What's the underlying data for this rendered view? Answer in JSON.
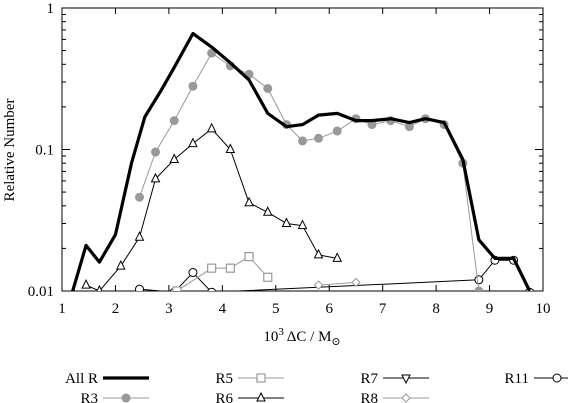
{
  "chart_data": {
    "type": "line",
    "title": "",
    "xlabel": "10³ ΔC / M⊙",
    "ylabel": "Relative Number",
    "xlim": [
      1,
      10
    ],
    "ylim": [
      0.01,
      1
    ],
    "yscale": "log",
    "grid": false,
    "legend_position": "bottom",
    "x_ticks": [
      "1",
      "2",
      "3",
      "4",
      "5",
      "6",
      "7",
      "8",
      "9",
      "10"
    ],
    "y_ticks": [
      "0.01",
      "0.1",
      "1"
    ],
    "series": [
      {
        "name": "All R",
        "color": "#000000",
        "marker": "none",
        "x": [
          1.2,
          1.45,
          1.7,
          2.0,
          2.3,
          2.55,
          2.85,
          3.1,
          3.45,
          3.8,
          4.15,
          4.5,
          4.85,
          5.2,
          5.5,
          5.8,
          6.15,
          6.5,
          6.8,
          7.15,
          7.5,
          7.8,
          8.15,
          8.5,
          8.8,
          9.1,
          9.45,
          9.75
        ],
        "y": [
          0.01,
          0.021,
          0.016,
          0.025,
          0.08,
          0.17,
          0.26,
          0.38,
          0.66,
          0.53,
          0.41,
          0.31,
          0.18,
          0.145,
          0.15,
          0.175,
          0.18,
          0.16,
          0.16,
          0.165,
          0.155,
          0.165,
          0.155,
          0.085,
          0.023,
          0.017,
          0.017,
          0.01
        ]
      },
      {
        "name": "R3",
        "color": "#999999",
        "marker": "circle",
        "marker_fill": "#999999",
        "x": [
          2.45,
          2.75,
          3.1,
          3.45,
          3.8,
          4.15,
          4.5,
          4.85,
          5.2,
          5.5,
          5.8,
          6.15,
          6.5,
          6.8,
          7.15,
          7.5,
          7.8,
          8.15,
          8.5,
          8.8
        ],
        "y": [
          0.046,
          0.096,
          0.16,
          0.28,
          0.48,
          0.39,
          0.34,
          0.27,
          0.15,
          0.115,
          0.12,
          0.135,
          0.165,
          0.15,
          0.16,
          0.145,
          0.165,
          0.15,
          0.08,
          0.01
        ]
      },
      {
        "name": "R5",
        "color": "#999999",
        "marker": "square",
        "marker_fill": "#ffffff",
        "x": [
          3.15,
          3.8,
          4.15,
          4.5,
          4.85
        ],
        "y": [
          0.01,
          0.0145,
          0.0145,
          0.0175,
          0.0125
        ]
      },
      {
        "name": "R6",
        "color": "#000000",
        "marker": "triangle-up",
        "marker_fill": "#ffffff",
        "x": [
          1.45,
          1.7,
          2.1,
          2.45,
          2.75,
          3.1,
          3.45,
          3.8,
          4.15,
          4.5,
          4.85,
          5.2,
          5.5,
          5.8,
          6.15
        ],
        "y": [
          0.011,
          0.01,
          0.015,
          0.024,
          0.062,
          0.085,
          0.11,
          0.14,
          0.1,
          0.042,
          0.036,
          0.03,
          0.029,
          0.018,
          0.017
        ]
      },
      {
        "name": "R7",
        "color": "#000000",
        "marker": "triangle-down",
        "marker_fill": "#ffffff",
        "x": [],
        "y": []
      },
      {
        "name": "R8",
        "color": "#999999",
        "marker": "diamond",
        "marker_fill": "#ffffff",
        "x": [
          5.8,
          6.5
        ],
        "y": [
          0.011,
          0.0115
        ]
      },
      {
        "name": "R11",
        "color": "#000000",
        "marker": "circle",
        "marker_fill": "#ffffff",
        "x": [
          2.45,
          3.1,
          3.45,
          3.8,
          8.8,
          9.1,
          9.45,
          9.75
        ],
        "y": [
          0.0103,
          0.0098,
          0.0135,
          0.0098,
          0.012,
          0.0165,
          0.0165,
          0.0098
        ]
      }
    ]
  }
}
